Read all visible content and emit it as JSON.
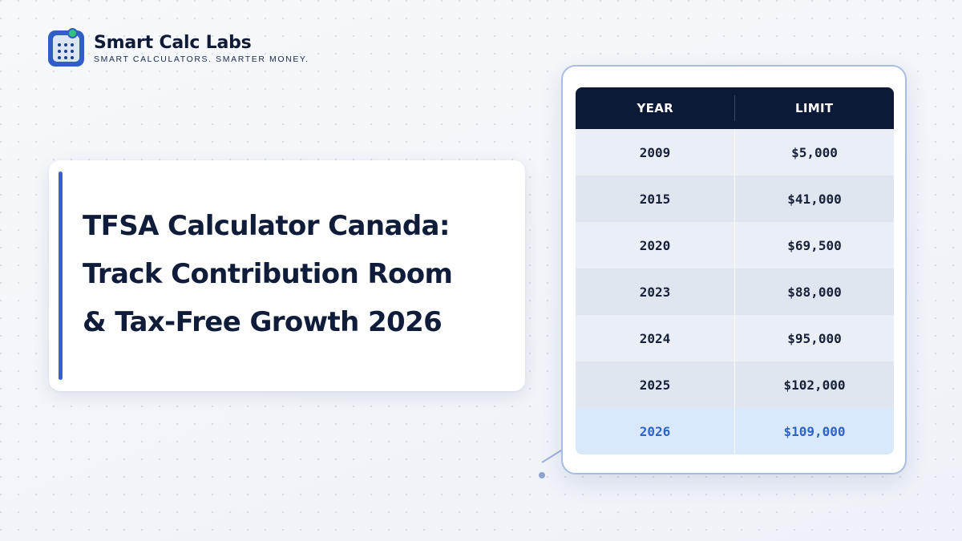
{
  "brand": {
    "name": "Smart Calc Labs",
    "tagline": "SMART CALCULATORS. SMARTER MONEY.",
    "icon": "calculator-icon"
  },
  "title_card": {
    "line1": "TFSA Calculator Canada:",
    "line2": "Track Contribution Room",
    "line3": "& Tax-Free Growth 2026"
  },
  "table": {
    "headers": [
      "YEAR",
      "LIMIT"
    ],
    "rows": [
      {
        "year": "2009",
        "limit": "$5,000"
      },
      {
        "year": "2015",
        "limit": "$41,000"
      },
      {
        "year": "2020",
        "limit": "$69,500"
      },
      {
        "year": "2023",
        "limit": "$88,000"
      },
      {
        "year": "2024",
        "limit": "$95,000"
      },
      {
        "year": "2025",
        "limit": "$102,000"
      },
      {
        "year": "2026",
        "limit": "$109,000"
      }
    ],
    "highlighted_row": "2026"
  },
  "colors": {
    "accent": "#2f63d0",
    "header_bg": "#0c1a38",
    "highlight_text": "#2d64c8",
    "card_border": "#a9bde2"
  }
}
